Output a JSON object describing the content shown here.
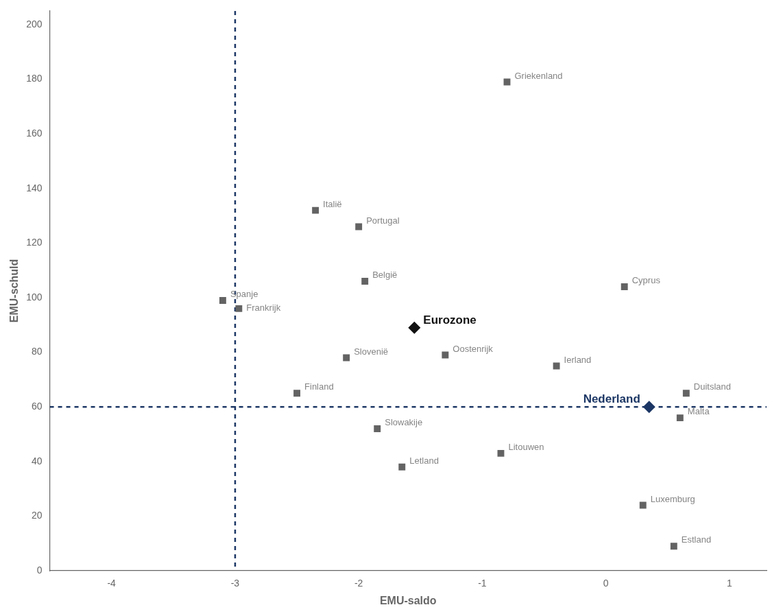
{
  "chart_data": {
    "type": "scatter",
    "xlabel": "EMU-saldo",
    "ylabel": "EMU-schuld",
    "xlim": [
      -4.5,
      1.3
    ],
    "ylim": [
      0,
      205
    ],
    "xticks": [
      -4,
      -3,
      -2,
      -1,
      0,
      1
    ],
    "yticks": [
      0,
      20,
      40,
      60,
      80,
      100,
      120,
      140,
      160,
      180,
      200
    ],
    "grid": false,
    "series": [
      {
        "name": "Griekenland",
        "color": "#636363",
        "marker": "square",
        "x": [
          -0.8
        ],
        "values": [
          179
        ]
      },
      {
        "name": "Italië",
        "color": "#636363",
        "marker": "square",
        "x": [
          -2.35
        ],
        "values": [
          132
        ]
      },
      {
        "name": "Portugal",
        "color": "#636363",
        "marker": "square",
        "x": [
          -2.0
        ],
        "values": [
          126
        ]
      },
      {
        "name": "België",
        "color": "#636363",
        "marker": "square",
        "x": [
          -1.95
        ],
        "values": [
          106
        ]
      },
      {
        "name": "Spanje",
        "color": "#636363",
        "marker": "square",
        "x": [
          -3.1
        ],
        "values": [
          99
        ]
      },
      {
        "name": "Frankrijk",
        "color": "#636363",
        "marker": "square",
        "x": [
          -2.97
        ],
        "values": [
          96
        ]
      },
      {
        "name": "Cyprus",
        "color": "#636363",
        "marker": "square",
        "x": [
          0.15
        ],
        "values": [
          104
        ]
      },
      {
        "name": "Slovenië",
        "color": "#636363",
        "marker": "square",
        "x": [
          -2.1
        ],
        "values": [
          78
        ]
      },
      {
        "name": "Oostenrijk",
        "color": "#636363",
        "marker": "square",
        "x": [
          -1.3
        ],
        "values": [
          79
        ]
      },
      {
        "name": "Ierland",
        "color": "#636363",
        "marker": "square",
        "x": [
          -0.4
        ],
        "values": [
          75
        ]
      },
      {
        "name": "Finland",
        "color": "#636363",
        "marker": "square",
        "x": [
          -2.5
        ],
        "values": [
          65
        ]
      },
      {
        "name": "Duitsland",
        "color": "#636363",
        "marker": "square",
        "x": [
          0.65
        ],
        "values": [
          65
        ]
      },
      {
        "name": "Slowakije",
        "color": "#636363",
        "marker": "square",
        "x": [
          -1.85
        ],
        "values": [
          52
        ]
      },
      {
        "name": "Litouwen",
        "color": "#636363",
        "marker": "square",
        "x": [
          -0.85
        ],
        "values": [
          43
        ]
      },
      {
        "name": "Letland",
        "color": "#636363",
        "marker": "square",
        "x": [
          -1.65
        ],
        "values": [
          38
        ]
      },
      {
        "name": "Malta",
        "color": "#636363",
        "marker": "square",
        "x": [
          0.6
        ],
        "values": [
          56
        ]
      },
      {
        "name": "Luxemburg",
        "color": "#636363",
        "marker": "square",
        "x": [
          0.3
        ],
        "values": [
          24
        ]
      },
      {
        "name": "Estland",
        "color": "#636363",
        "marker": "square",
        "x": [
          0.55
        ],
        "values": [
          9
        ]
      },
      {
        "name": "Eurozone",
        "color": "#111111",
        "marker": "diamond",
        "x": [
          -1.55
        ],
        "values": [
          89
        ]
      },
      {
        "name": "Nederland",
        "color": "#1b3664",
        "marker": "diamond",
        "x": [
          0.35
        ],
        "values": [
          60
        ]
      }
    ],
    "reference_lines": [
      {
        "x": -3.0,
        "color": "#1b3664",
        "line_style": "dashed"
      },
      {
        "y": 60,
        "color": "#1b3664",
        "line_style": "dashed"
      }
    ]
  }
}
